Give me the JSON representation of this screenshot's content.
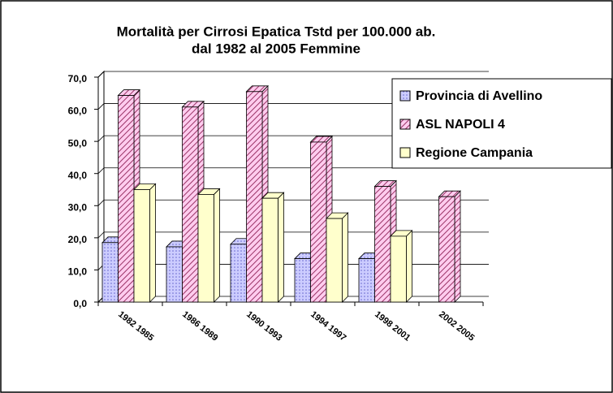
{
  "chart_data": {
    "type": "bar3d",
    "title": "Mortalità per Cirrosi Epatica Tstd per 100.000 ab.",
    "subtitle": "dal 1982 al 2005 Femmine",
    "categories": [
      "1982 1985",
      "1986 1989",
      "1990 1993",
      "1994 1997",
      "1998 2001",
      "2002 2005"
    ],
    "series": [
      {
        "name": "Provincia di Avellino",
        "color": "#ccccff",
        "values": [
          18.5,
          17.2,
          18,
          13.5,
          13.5,
          null
        ]
      },
      {
        "name": "ASL NAPOLI 4",
        "color": "#ff99cc",
        "values": [
          64.3,
          60.7,
          65.5,
          49.8,
          36,
          32.8
        ]
      },
      {
        "name": "Regione Campania",
        "color": "#ffffcc",
        "values": [
          35,
          33.5,
          32.3,
          26,
          20.5,
          null
        ]
      }
    ],
    "ylim": [
      0,
      70
    ],
    "yticks": [
      {
        "value": 0,
        "label": "0,0"
      },
      {
        "value": 10,
        "label": "10,0"
      },
      {
        "value": 20,
        "label": "20,0"
      },
      {
        "value": 30,
        "label": "30,0"
      },
      {
        "value": 40,
        "label": "40,0"
      },
      {
        "value": 50,
        "label": "50,0"
      },
      {
        "value": 60,
        "label": "60,0"
      },
      {
        "value": 70,
        "label": "70,0"
      }
    ],
    "grid": true,
    "legend": "upper right"
  }
}
